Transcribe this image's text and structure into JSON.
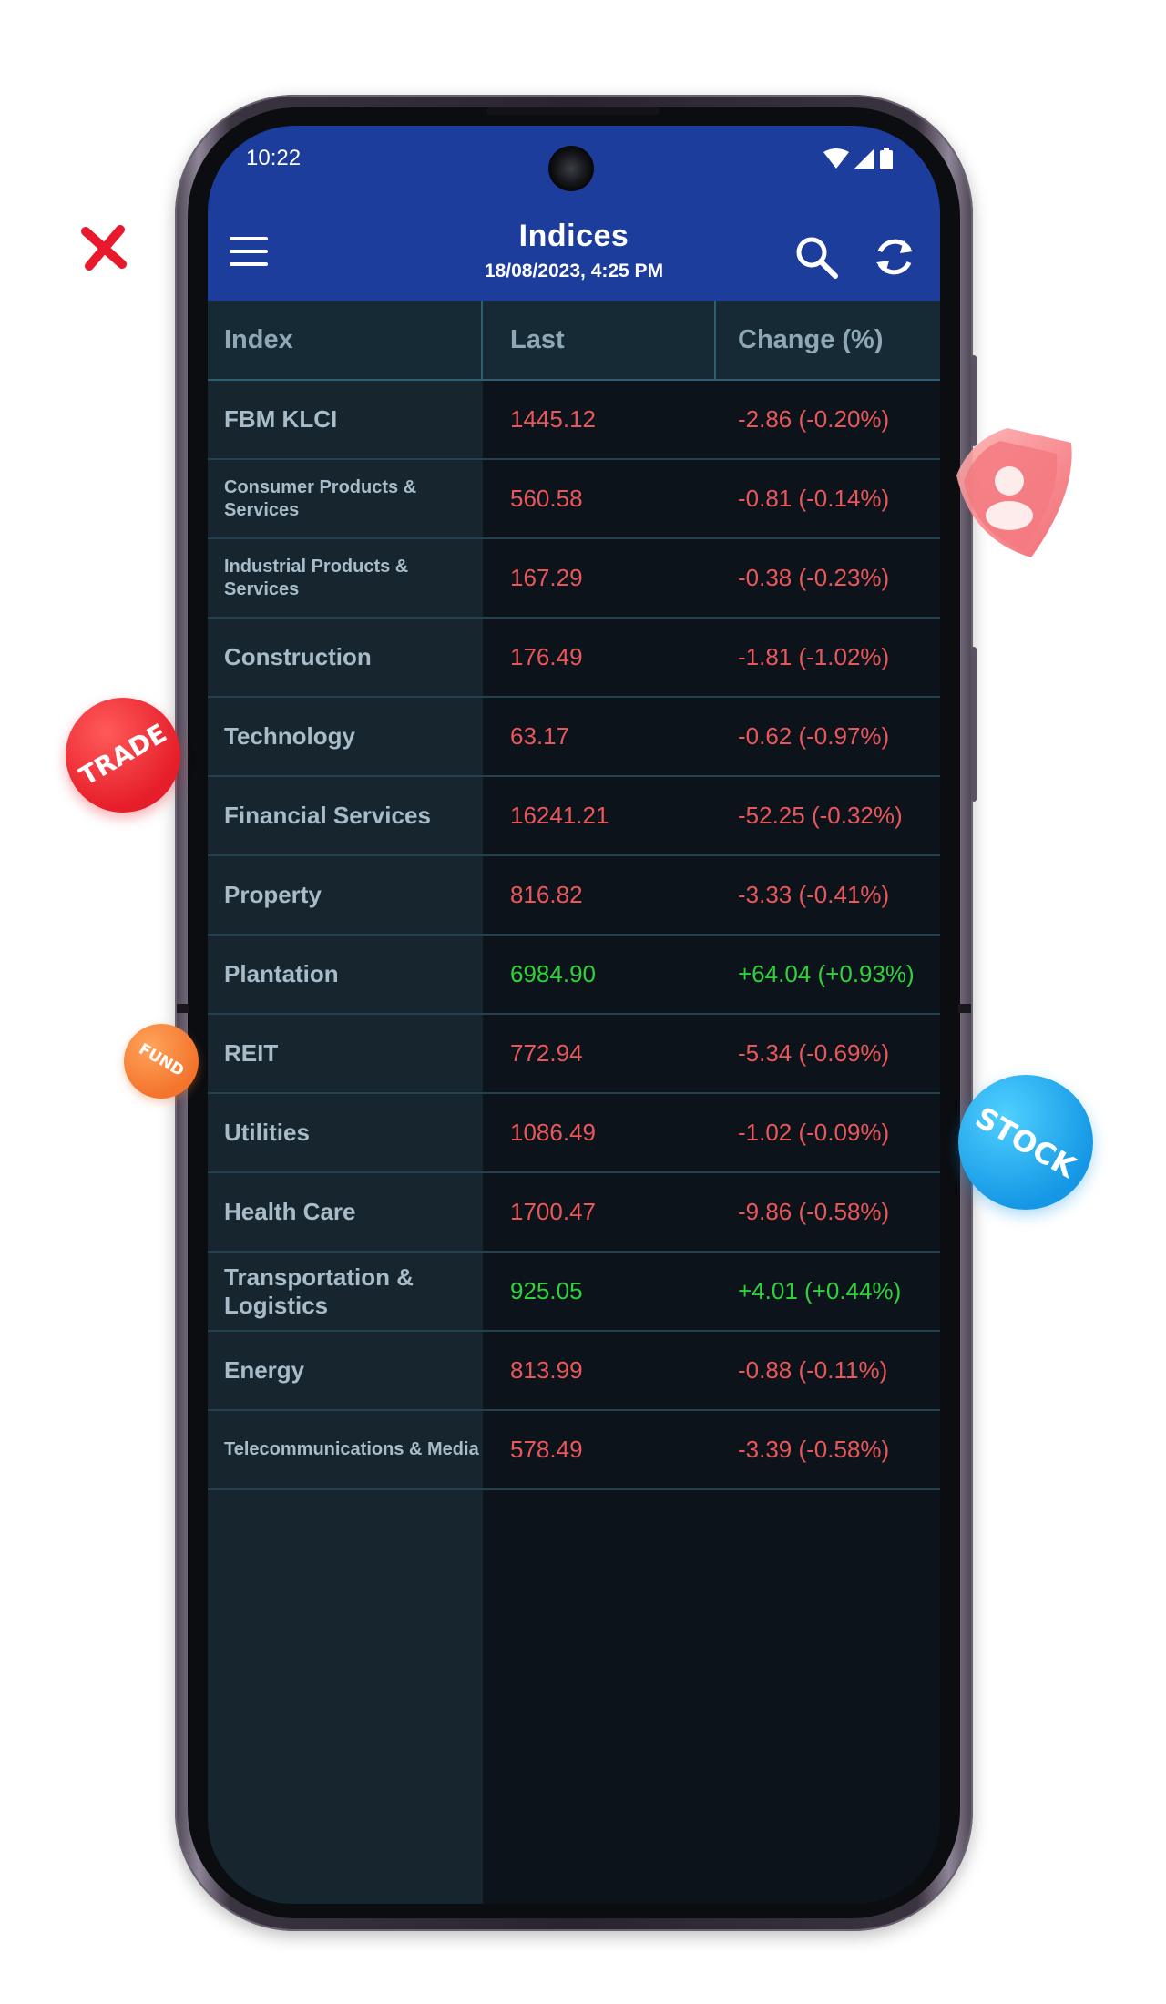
{
  "status_bar": {
    "time": "10:22",
    "icons": [
      "wifi-icon",
      "signal-icon",
      "battery-icon"
    ]
  },
  "app_bar": {
    "title": "Indices",
    "subtitle": "18/08/2023, 4:25 PM",
    "icons": [
      "menu-icon",
      "search-icon",
      "refresh-icon"
    ]
  },
  "table": {
    "headers": {
      "index": "Index",
      "last": "Last",
      "change": "Change (%)"
    },
    "rows": [
      {
        "name": "FBM KLCI",
        "last": "1445.12",
        "change": "-2.86 (-0.20%)",
        "trend": "down"
      },
      {
        "name": "Consumer Products & Services",
        "last": "560.58",
        "change": "-0.81 (-0.14%)",
        "trend": "down"
      },
      {
        "name": "Industrial Products & Services",
        "last": "167.29",
        "change": "-0.38 (-0.23%)",
        "trend": "down"
      },
      {
        "name": "Construction",
        "last": "176.49",
        "change": "-1.81 (-1.02%)",
        "trend": "down"
      },
      {
        "name": "Technology",
        "last": "63.17",
        "change": "-0.62 (-0.97%)",
        "trend": "down"
      },
      {
        "name": "Financial Services",
        "last": "16241.21",
        "change": "-52.25 (-0.32%)",
        "trend": "down"
      },
      {
        "name": "Property",
        "last": "816.82",
        "change": "-3.33 (-0.41%)",
        "trend": "down"
      },
      {
        "name": "Plantation",
        "last": "6984.90",
        "change": "+64.04 (+0.93%)",
        "trend": "up"
      },
      {
        "name": "REIT",
        "last": "772.94",
        "change": "-5.34 (-0.69%)",
        "trend": "down"
      },
      {
        "name": "Utilities",
        "last": "1086.49",
        "change": "-1.02 (-0.09%)",
        "trend": "down"
      },
      {
        "name": "Health Care",
        "last": "1700.47",
        "change": "-9.86 (-0.58%)",
        "trend": "down"
      },
      {
        "name": "Transportation & Logistics",
        "last": "925.05",
        "change": "+4.01 (+0.44%)",
        "trend": "up"
      },
      {
        "name": "Energy",
        "last": "813.99",
        "change": "-0.88 (-0.11%)",
        "trend": "down"
      },
      {
        "name": "Telecommunications & Media",
        "last": "578.49",
        "change": "-3.39 (-0.58%)",
        "trend": "down"
      }
    ]
  },
  "decorations": {
    "trade_badge": "TRADE",
    "fund_badge": "FUND",
    "stock_badge": "STOCK"
  },
  "colors": {
    "app_bar": "#1c3d9c",
    "negative": "#e9575a",
    "positive": "#2fd23b"
  }
}
